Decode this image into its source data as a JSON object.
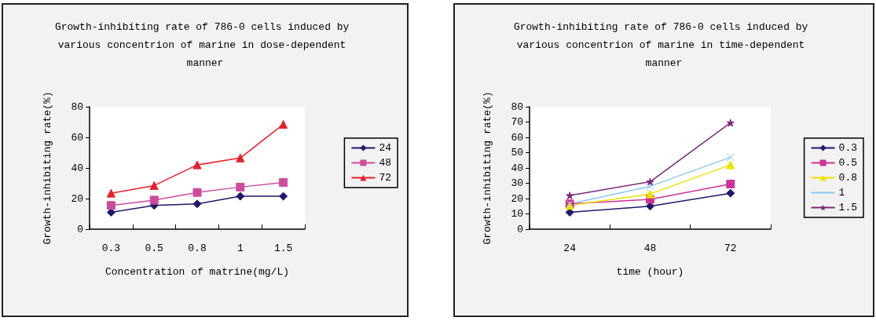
{
  "chart_data": [
    {
      "type": "line",
      "title": "Growth-inhibiting rate of 786-0 cells induced by various concentrion of marine in dose-dependent manner",
      "xlabel": "Concentration of matrine(mg/L)",
      "ylabel": "Growth-inhibiting rate(%)",
      "categories": [
        "0.3",
        "0.5",
        "0.8",
        "1",
        "1.5"
      ],
      "ylim": [
        0,
        80
      ],
      "yticks": [
        0,
        20,
        40,
        60,
        80
      ],
      "grid": false,
      "legend": "right",
      "line_style": "solid",
      "series": [
        {
          "name": "24",
          "color": "#1f1a6b",
          "marker": "diamond",
          "values": [
            11,
            15.5,
            16.5,
            21.5,
            21.5
          ]
        },
        {
          "name": "48",
          "color": "#cc4c9c",
          "marker": "square",
          "values": [
            15.5,
            19,
            24,
            27.5,
            30.5
          ]
        },
        {
          "name": "72",
          "color": "#e8202e",
          "marker": "triangle",
          "values": [
            23.5,
            28.5,
            42,
            46.5,
            68.5
          ]
        }
      ]
    },
    {
      "type": "line",
      "title": "Growth-inhibiting rate of 786-0 cells induced by various concentrion of marine in time-dependent manner",
      "xlabel": "time (hour)",
      "ylabel": "Growth-inhibiting rate(%)",
      "categories": [
        "24",
        "48",
        "72"
      ],
      "ylim": [
        0,
        80
      ],
      "yticks": [
        0,
        10,
        20,
        30,
        40,
        50,
        60,
        70,
        80
      ],
      "grid": false,
      "legend": "right",
      "line_style": "solid",
      "series": [
        {
          "name": "0.3",
          "color": "#1f1a6b",
          "marker": "diamond",
          "values": [
            11,
            15,
            23.5
          ]
        },
        {
          "name": "0.5",
          "color": "#cc3399",
          "marker": "square",
          "values": [
            16.5,
            19.5,
            29.5
          ]
        },
        {
          "name": "0.8",
          "color": "#f0e000",
          "marker": "triangle",
          "values": [
            15.5,
            23,
            42
          ]
        },
        {
          "name": "1",
          "color": "#88c8ee",
          "marker": "cross",
          "values": [
            16.5,
            28,
            47
          ]
        },
        {
          "name": "1.5",
          "color": "#7a2a7a",
          "marker": "star",
          "values": [
            22,
            31,
            69.5
          ]
        }
      ]
    }
  ]
}
